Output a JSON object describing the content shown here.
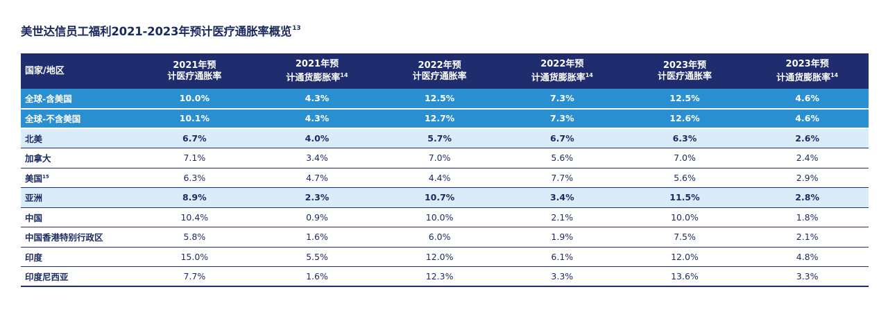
{
  "title": "美世达信员工福利2021-2023年预计医疗通胀率概览",
  "title_sup": "13",
  "headers": [
    {
      "label": "国家/地区",
      "sup": ""
    },
    {
      "label": "2021年预计医疗通胀率",
      "sup": ""
    },
    {
      "label": "2021年预计通货膨胀率",
      "sup": "14"
    },
    {
      "label": "2022年预计医疗通胀率",
      "sup": ""
    },
    {
      "label": "2022年预计通货膨胀率",
      "sup": "14"
    },
    {
      "label": "2023年预计医疗通胀率",
      "sup": ""
    },
    {
      "label": "2023年预计通货膨胀率",
      "sup": "14"
    }
  ],
  "rows": [
    {
      "type": "global",
      "label": "全球-含美国",
      "sup": "",
      "values": [
        "10.0%",
        "4.3%",
        "12.5%",
        "7.3%",
        "12.5%",
        "4.6%"
      ]
    },
    {
      "type": "global",
      "label": "全球-不含美国",
      "sup": "",
      "values": [
        "10.1%",
        "4.3%",
        "12.7%",
        "7.3%",
        "12.6%",
        "4.6%"
      ]
    },
    {
      "type": "region",
      "label": "北美",
      "sup": "",
      "values": [
        "6.7%",
        "4.0%",
        "5.7%",
        "6.7%",
        "6.3%",
        "2.6%"
      ]
    },
    {
      "type": "country",
      "label": "加拿大",
      "sup": "",
      "values": [
        "7.1%",
        "3.4%",
        "7.0%",
        "5.6%",
        "7.0%",
        "2.4%"
      ]
    },
    {
      "type": "country",
      "label": "美国",
      "sup": "15",
      "values": [
        "6.3%",
        "4.7%",
        "4.4%",
        "7.7%",
        "5.6%",
        "2.9%"
      ]
    },
    {
      "type": "region",
      "label": "亚洲",
      "sup": "",
      "values": [
        "8.9%",
        "2.3%",
        "10.7%",
        "3.4%",
        "11.5%",
        "2.8%"
      ]
    },
    {
      "type": "country",
      "label": "中国",
      "sup": "",
      "values": [
        "10.4%",
        "0.9%",
        "10.0%",
        "2.1%",
        "10.0%",
        "1.8%"
      ]
    },
    {
      "type": "country",
      "label": "中国香港特别行政区",
      "sup": "",
      "values": [
        "5.8%",
        "1.6%",
        "6.0%",
        "1.9%",
        "7.5%",
        "2.1%"
      ]
    },
    {
      "type": "country",
      "label": "印度",
      "sup": "",
      "values": [
        "15.0%",
        "5.5%",
        "12.0%",
        "6.1%",
        "12.0%",
        "4.8%"
      ]
    },
    {
      "type": "country",
      "label": "印度尼西亚",
      "sup": "",
      "values": [
        "7.7%",
        "1.6%",
        "12.3%",
        "3.3%",
        "13.6%",
        "3.3%"
      ]
    }
  ],
  "colors": {
    "header_bg": "#1f2c6e",
    "global_bg": "#2a8fd0",
    "region_bg": "#d9ecf8",
    "text": "#1b2a5e"
  }
}
